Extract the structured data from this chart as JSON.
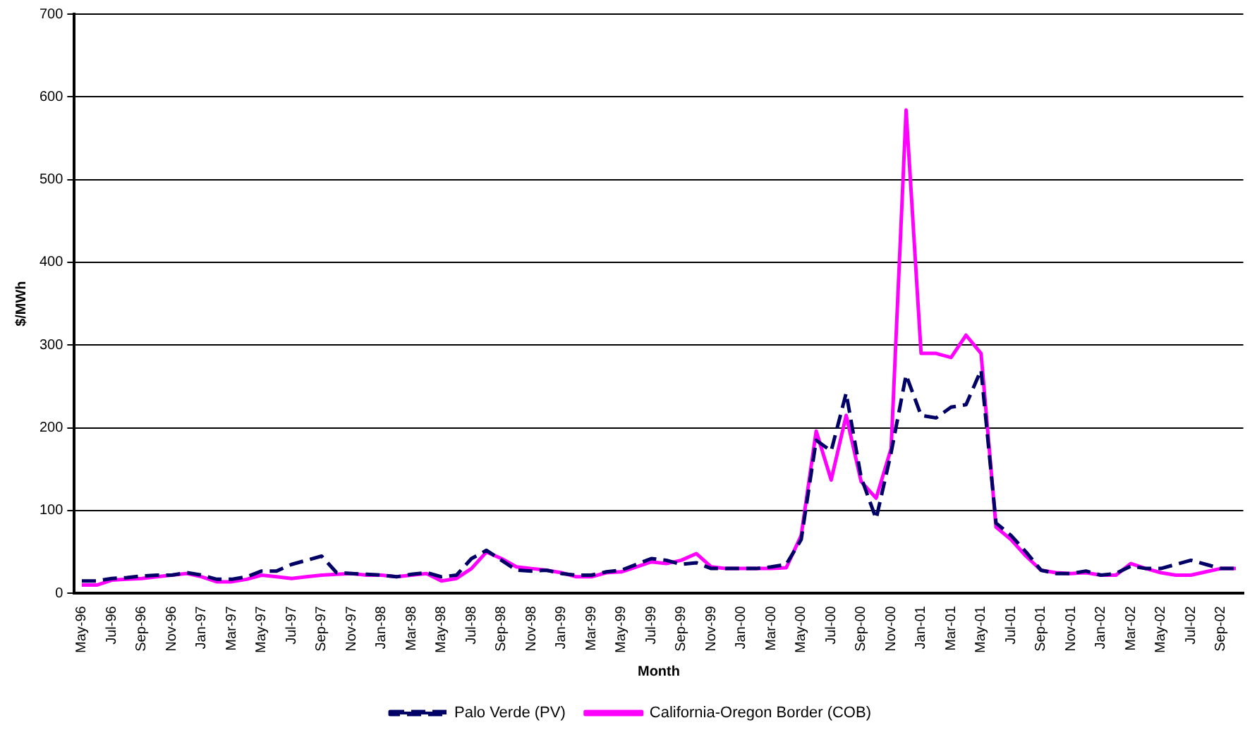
{
  "chart_data": {
    "type": "line",
    "xlabel": "Month",
    "ylabel": "$/MWh",
    "categories": [
      "May-96",
      null,
      "Jul-96",
      null,
      "Sep-96",
      null,
      "Nov-96",
      null,
      "Jan-97",
      null,
      "Mar-97",
      null,
      "May-97",
      null,
      "Jul-97",
      null,
      "Sep-97",
      null,
      "Nov-97",
      null,
      "Jan-98",
      null,
      "Mar-98",
      null,
      "May-98",
      null,
      "Jul-98",
      null,
      "Sep-98",
      null,
      "Nov-98",
      null,
      "Jan-99",
      null,
      "Mar-99",
      null,
      "May-99",
      null,
      "Jul-99",
      null,
      "Sep-99",
      null,
      "Nov-99",
      null,
      "Jan-00",
      null,
      "Mar-00",
      null,
      "May-00",
      null,
      "Jul-00",
      null,
      "Sep-00",
      null,
      "Nov-00",
      null,
      "Jan-01",
      null,
      "Mar-01",
      null,
      "May-01",
      null,
      "Jul-01",
      null,
      "Sep-01",
      null,
      "Nov-01",
      null,
      "Jan-02",
      null,
      "Mar-02",
      null,
      "May-02",
      null,
      "Jul-02",
      null,
      "Sep-02",
      null
    ],
    "series": [
      {
        "name": "Palo Verde (PV)",
        "color": "#000066",
        "line_style": "dashed",
        "values": [
          15,
          15,
          18,
          19,
          21,
          22,
          22,
          25,
          22,
          17,
          17,
          20,
          27,
          27,
          35,
          40,
          45,
          25,
          24,
          23,
          22,
          20,
          23,
          25,
          20,
          22,
          42,
          52,
          40,
          28,
          27,
          28,
          24,
          22,
          22,
          26,
          28,
          35,
          42,
          40,
          35,
          37,
          30,
          30,
          30,
          30,
          32,
          35,
          65,
          185,
          172,
          242,
          140,
          90,
          170,
          264,
          215,
          212,
          225,
          228,
          270,
          85,
          70,
          50,
          28,
          24,
          24,
          27,
          22,
          24,
          33,
          30,
          30,
          35,
          40,
          35,
          30,
          30
        ]
      },
      {
        "name": "California-Oregon Border (COB)",
        "color": "#ff00ff",
        "line_style": "solid",
        "values": [
          10,
          10,
          16,
          17,
          18,
          20,
          22,
          24,
          20,
          14,
          14,
          17,
          22,
          20,
          18,
          20,
          22,
          23,
          24,
          22,
          22,
          20,
          22,
          24,
          15,
          18,
          30,
          50,
          42,
          32,
          30,
          28,
          25,
          20,
          20,
          25,
          26,
          32,
          38,
          36,
          40,
          48,
          32,
          30,
          30,
          30,
          30,
          31,
          70,
          196,
          137,
          215,
          135,
          115,
          175,
          584,
          290,
          290,
          285,
          312,
          290,
          80,
          65,
          45,
          28,
          25,
          24,
          25,
          22,
          22,
          36,
          30,
          25,
          22,
          22,
          26,
          30,
          30
        ]
      }
    ],
    "ylim": [
      0,
      700
    ],
    "yticks": [
      0,
      100,
      200,
      300,
      400,
      500,
      600,
      700
    ],
    "grid": "y",
    "legend": "bottom",
    "marker": "none"
  }
}
